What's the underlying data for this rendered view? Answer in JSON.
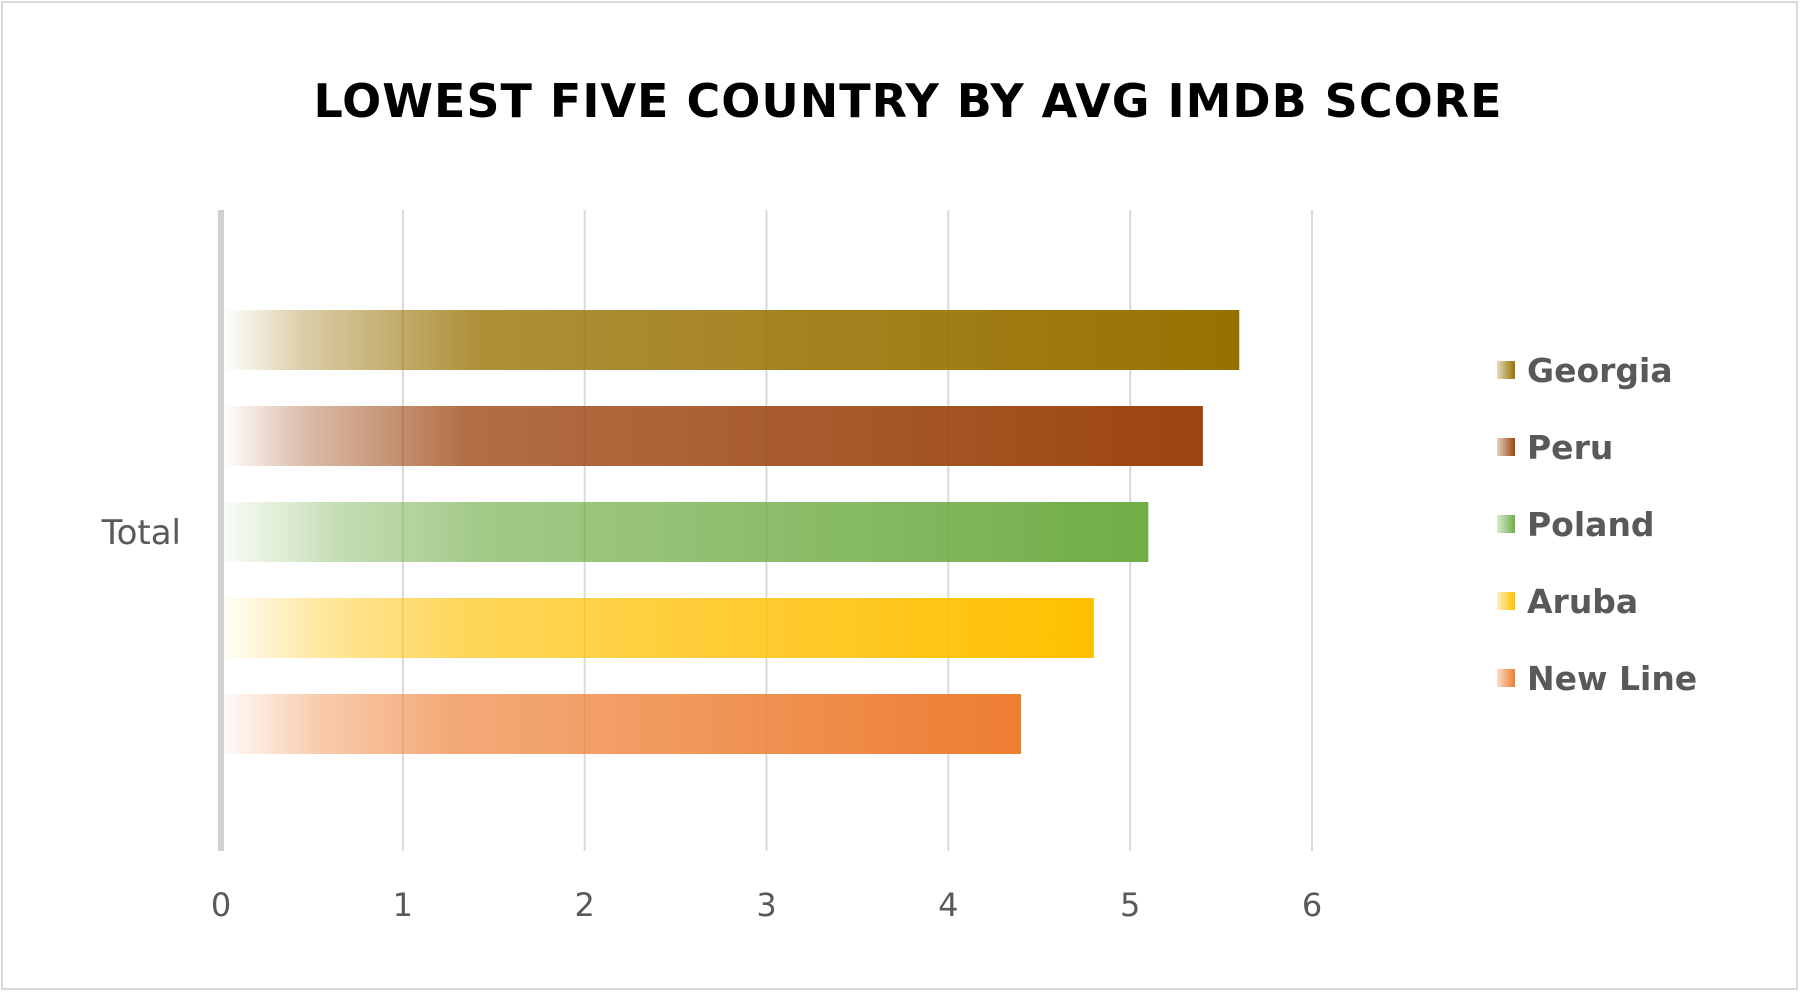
{
  "chart_data": {
    "type": "bar",
    "orientation": "horizontal",
    "title": "LOWEST FIVE COUNTRY BY AVG IMDB SCORE",
    "categories": [
      "Total"
    ],
    "series": [
      {
        "name": "Georgia",
        "values": [
          5.6
        ],
        "color": "#977100"
      },
      {
        "name": "Peru",
        "values": [
          5.4
        ],
        "color": "#9c4510"
      },
      {
        "name": "Poland",
        "values": [
          5.1
        ],
        "color": "#70ad47"
      },
      {
        "name": "Aruba",
        "values": [
          4.8
        ],
        "color": "#ffc000"
      },
      {
        "name": "New Line",
        "values": [
          4.4
        ],
        "color": "#ed7d31"
      }
    ],
    "xlim": [
      0,
      6
    ],
    "x_ticks": [
      "0",
      "1",
      "2",
      "3",
      "4",
      "5",
      "6"
    ],
    "xlabel": "",
    "ylabel": "",
    "grid": true,
    "legend_position": "right"
  }
}
